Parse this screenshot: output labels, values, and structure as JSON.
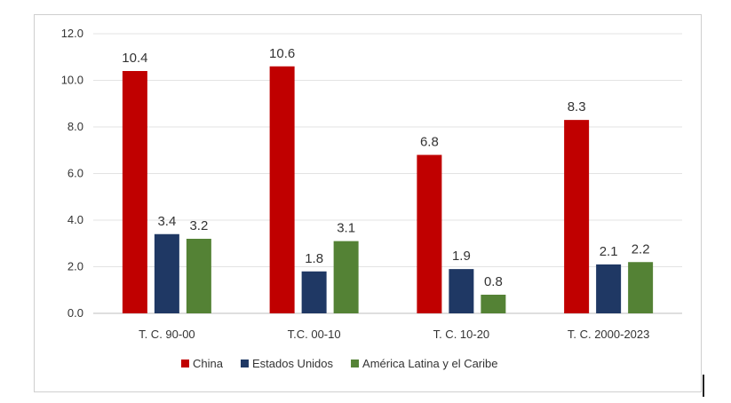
{
  "chart_data": {
    "type": "bar",
    "title": "",
    "xlabel": "",
    "ylabel": "",
    "ylim": [
      0,
      12
    ],
    "yticks": [
      "0.0",
      "2.0",
      "4.0",
      "6.0",
      "8.0",
      "10.0",
      "12.0"
    ],
    "grid": true,
    "legend_position": "bottom",
    "categories": [
      "T. C. 90-00",
      "T.C. 00-10",
      "T. C. 10-20",
      "T. C. 2000-2023"
    ],
    "series": [
      {
        "name": "China",
        "color": "#c00000",
        "values": [
          10.4,
          10.6,
          6.8,
          8.3
        ],
        "labels": [
          "10.4",
          "10.6",
          "6.8",
          "8.3"
        ]
      },
      {
        "name": "Estados Unidos",
        "color": "#1f3864",
        "values": [
          3.4,
          1.8,
          1.9,
          2.1
        ],
        "labels": [
          "3.4",
          "1.8",
          "1.9",
          "2.1"
        ]
      },
      {
        "name": "América Latina y el Caribe",
        "color": "#548235",
        "values": [
          3.2,
          3.1,
          0.8,
          2.2
        ],
        "labels": [
          "3.2",
          "3.1",
          "0.8",
          "2.2"
        ]
      }
    ]
  }
}
